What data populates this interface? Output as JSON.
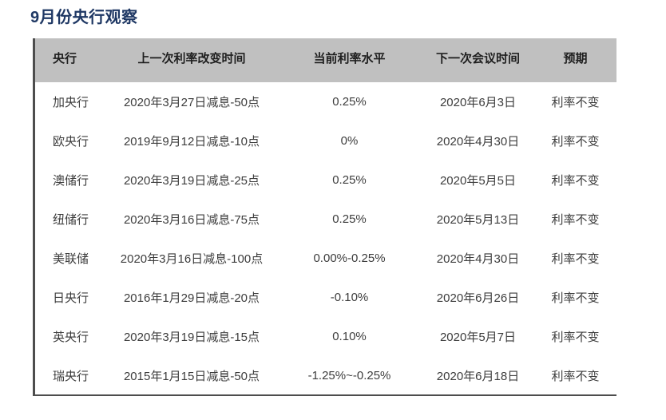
{
  "page": {
    "title": "9月份央行观察"
  },
  "table": {
    "headers": [
      "央行",
      "上一次利率改变时间",
      "当前利率水平",
      "下一次会议时间",
      "预期"
    ],
    "rows": [
      [
        "加央行",
        "2020年3月27日减息-50点",
        "0.25%",
        "2020年6月3日",
        "利率不变"
      ],
      [
        "欧央行",
        "2019年9月12日减息-10点",
        "0%",
        "2020年4月30日",
        "利率不变"
      ],
      [
        "澳储行",
        "2020年3月19日减息-25点",
        "0.25%",
        "2020年5月5日",
        "利率不变"
      ],
      [
        "纽储行",
        "2020年3月16日减息-75点",
        "0.25%",
        "2020年5月13日",
        "利率不变"
      ],
      [
        "美联储",
        "2020年3月16日减息-100点",
        "0.00%-0.25%",
        "2020年4月30日",
        "利率不变"
      ],
      [
        "日央行",
        "2016年1月29日减息-20点",
        "-0.10%",
        "2020年6月26日",
        "利率不变"
      ],
      [
        "英央行",
        "2020年3月19日减息-15点",
        "0.10%",
        "2020年5月7日",
        "利率不变"
      ],
      [
        "瑞央行",
        "2015年1月15日减息-50点",
        "-1.25%~-0.25%",
        "2020年6月18日",
        "利率不变"
      ]
    ]
  },
  "colors": {
    "title_color": "#1F3864",
    "header_bg": "#C0C0C0",
    "header_text": "#1F1F1F",
    "body_text": "#3D3D3D",
    "border_color": "#4D4D4D",
    "page_bg": "#FFFFFF"
  }
}
